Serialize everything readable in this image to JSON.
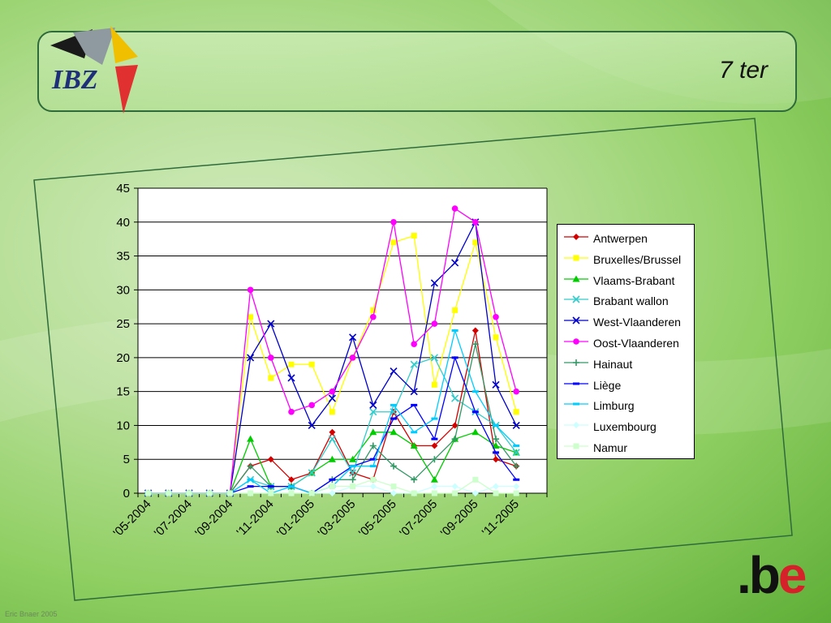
{
  "header": {
    "logo_text": "IBZ",
    "slide_number": "7 ter"
  },
  "footer": {
    "be_logo_dot": ".b",
    "be_logo_e": "e",
    "credit": "Eric Bnaer 2005"
  },
  "colors": {
    "Antwerpen": "#d40000",
    "Bruxelles/Brussel": "#ffff00",
    "Vlaams-Brabant": "#00cc00",
    "Brabant wallon": "#33cccc",
    "West-Vlaanderen": "#0000cc",
    "Oost-Vlaanderen": "#ff00ff",
    "Hainaut": "#339966",
    "Liège": "#0000ff",
    "Limburg": "#00ccff",
    "Luxembourg": "#ccffff",
    "Namur": "#ccffcc"
  },
  "chart_data": {
    "type": "line",
    "ylim": [
      0,
      45
    ],
    "yticks": [
      "0",
      "5",
      "10",
      "15",
      "20",
      "25",
      "30",
      "35",
      "40",
      "45"
    ],
    "xtick_labels": [
      "'05-2004",
      "'07-2004",
      "'09-2004",
      "'11-2004",
      "'01-2005",
      "'03-2005",
      "'05-2005",
      "'07-2005",
      "'09-2005",
      "'11-2005"
    ],
    "x": [
      "'05-2004",
      "'06-2004",
      "'07-2004",
      "'08-2004",
      "'09-2004",
      "'10-2004",
      "'11-2004",
      "'12-2004",
      "'01-2005",
      "'02-2005",
      "'03-2005",
      "'04-2005",
      "'05-2005",
      "'06-2005",
      "'07-2005",
      "'08-2005",
      "'09-2005",
      "'10-2005",
      "'11-2005",
      "'12-2005"
    ],
    "legend_position": "right",
    "grid": "horizontal",
    "series": [
      {
        "name": "Antwerpen",
        "marker": "diamond",
        "values": [
          0,
          0,
          0,
          0,
          0,
          4,
          5,
          2,
          3,
          9,
          3,
          2,
          12,
          7,
          7,
          10,
          24,
          5,
          4,
          null
        ]
      },
      {
        "name": "Bruxelles/Brussel",
        "marker": "square",
        "values": [
          0,
          0,
          0,
          0,
          0,
          26,
          17,
          19,
          19,
          12,
          20,
          27,
          37,
          38,
          16,
          27,
          37,
          23,
          12,
          null
        ]
      },
      {
        "name": "Vlaams-Brabant",
        "marker": "triangle",
        "values": [
          0,
          0,
          0,
          0,
          0,
          8,
          1,
          1,
          3,
          5,
          5,
          9,
          9,
          7,
          2,
          8,
          9,
          7,
          6,
          null
        ]
      },
      {
        "name": "Brabant wallon",
        "marker": "x",
        "values": [
          0,
          0,
          0,
          0,
          0,
          2,
          1,
          1,
          3,
          8,
          3,
          12,
          12,
          19,
          20,
          14,
          12,
          10,
          6,
          null
        ]
      },
      {
        "name": "West-Vlaanderen",
        "marker": "x",
        "values": [
          0,
          0,
          0,
          0,
          0,
          20,
          25,
          17,
          10,
          14,
          23,
          13,
          18,
          15,
          31,
          34,
          40,
          16,
          10,
          null
        ]
      },
      {
        "name": "Oost-Vlaanderen",
        "marker": "circle",
        "values": [
          0,
          0,
          0,
          0,
          0,
          30,
          20,
          12,
          13,
          15,
          20,
          26,
          40,
          22,
          25,
          42,
          40,
          26,
          15,
          null
        ]
      },
      {
        "name": "Hainaut",
        "marker": "plus",
        "values": [
          0,
          0,
          0,
          0,
          0,
          4,
          1,
          1,
          0,
          2,
          2,
          7,
          4,
          2,
          5,
          8,
          22,
          8,
          4,
          null
        ]
      },
      {
        "name": "Liège",
        "marker": "dash",
        "values": [
          0,
          0,
          0,
          0,
          0,
          1,
          1,
          1,
          0,
          2,
          4,
          5,
          11,
          13,
          8,
          20,
          12,
          6,
          2,
          null
        ]
      },
      {
        "name": "Limburg",
        "marker": "dash",
        "values": [
          0,
          0,
          0,
          0,
          0,
          2,
          0,
          1,
          0,
          1,
          4,
          4,
          13,
          9,
          11,
          24,
          15,
          10,
          7,
          null
        ]
      },
      {
        "name": "Luxembourg",
        "marker": "diamond",
        "values": [
          0,
          0,
          0,
          0,
          0,
          0,
          0,
          0,
          0,
          0,
          1,
          1,
          0,
          0,
          1,
          1,
          0,
          1,
          1,
          null
        ]
      },
      {
        "name": "Namur",
        "marker": "square",
        "values": [
          0,
          0,
          0,
          0,
          0,
          0,
          0,
          0,
          0,
          1,
          1,
          2,
          1,
          0,
          0,
          0,
          2,
          0,
          0,
          null
        ]
      }
    ]
  }
}
